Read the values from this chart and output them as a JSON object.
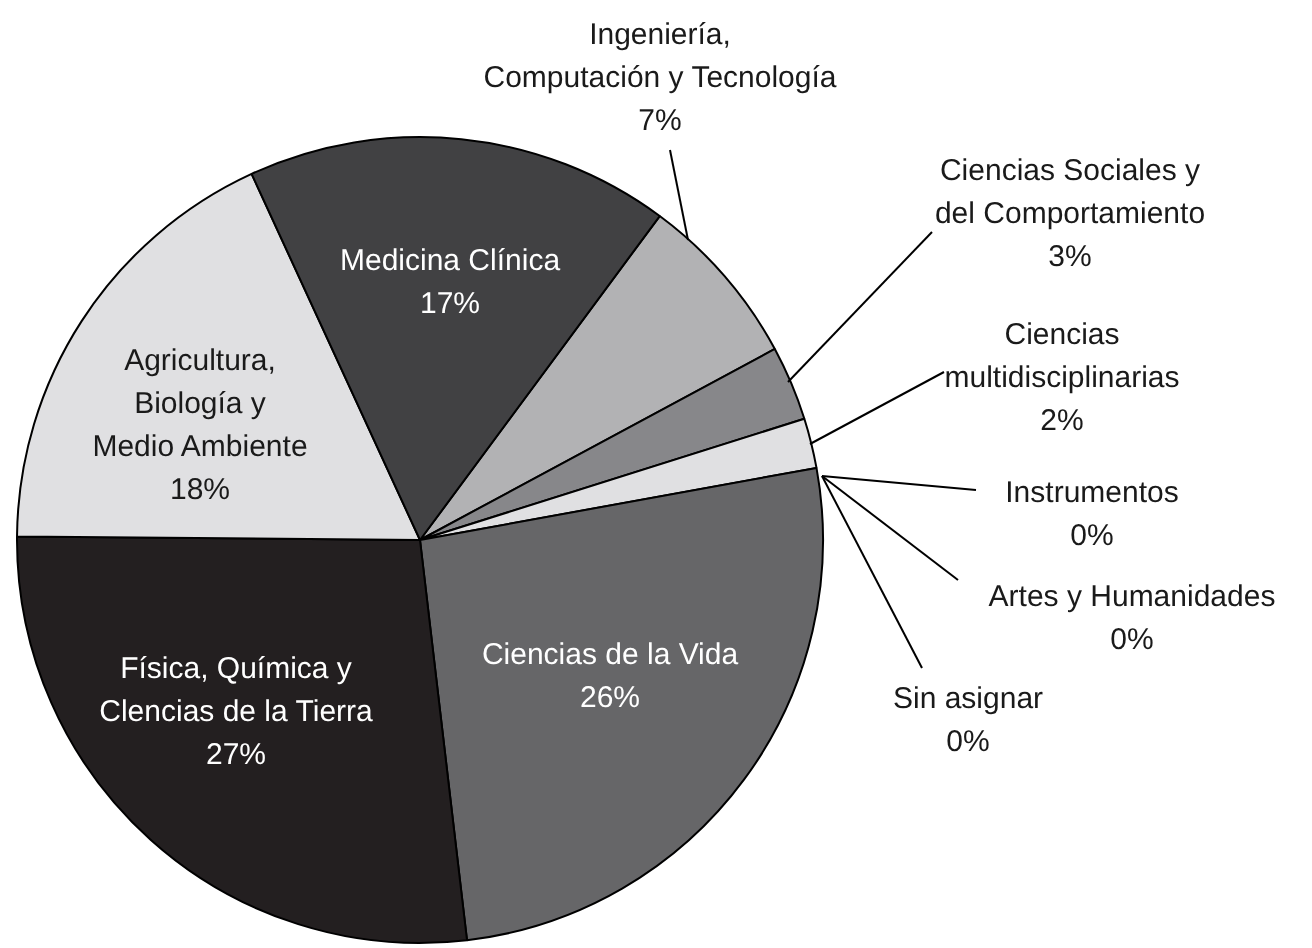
{
  "chart_data": {
    "type": "pie",
    "categories": [
      "Ingeniería, Computación y Tecnología",
      "Ciencias Sociales y del Comportamiento",
      "Ciencias multidisciplinarias",
      "Instrumentos",
      "Artes y Humanidades",
      "Sin asignar",
      "Ciencias de la Vida",
      "Física, Química y Clencias de la Tierra",
      "Agricultura, Biología y Medio Ambiente",
      "Medicina Clínica"
    ],
    "values": [
      7,
      3,
      2,
      0,
      0,
      0,
      26,
      27,
      18,
      17
    ],
    "value_labels": [
      "7%",
      "3%",
      "2%",
      "0%",
      "0%",
      "0%",
      "26%",
      "27%",
      "18%",
      "17%"
    ],
    "colors": [
      "#b2b2b4",
      "#87878a",
      "#e0e0e2",
      "#505052",
      "#909092",
      "#c0c0c2",
      "#666668",
      "#231f20",
      "#e0e0e2",
      "#414143"
    ],
    "legend": false
  }
}
